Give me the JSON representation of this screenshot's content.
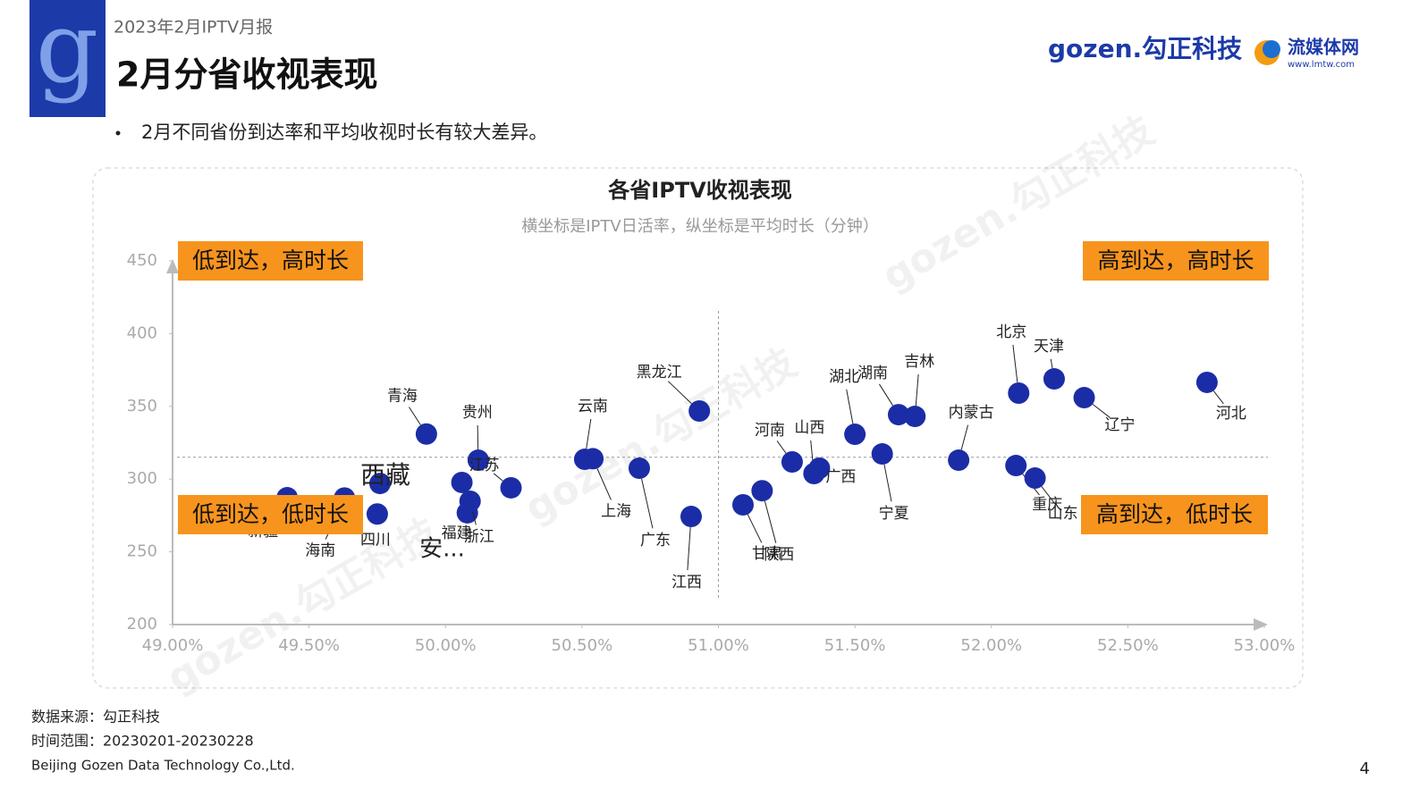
{
  "header": {
    "logo_letter": "g",
    "report": "2023年2月IPTV月报",
    "title": "2月分省收视表现",
    "bullet": "2月不同省份到达率和平均收视时长有较大差异。",
    "brand": "gozen.勾正科技",
    "partner": "流媒体网",
    "partner_url": "www.lmtw.com"
  },
  "watermark": "gozen.勾正科技",
  "chart_data": {
    "type": "scatter",
    "title": "各省IPTV收视表现",
    "subtitle": "横坐标是IPTV日活率，纵坐标是平均时长（分钟）",
    "color": "#1b2da6",
    "labels": [
      "新疆",
      "海南",
      "西藏",
      "四川",
      "青海",
      "贵州",
      "江苏",
      "安...",
      "福建",
      "浙江",
      "云南",
      "上海",
      "广东",
      "黑龙江",
      "江西",
      "甘肃",
      "陕西",
      "河南",
      "山西",
      "广西",
      "湖北",
      "宁夏",
      "湖南",
      "吉林",
      "内蒙古",
      "北京",
      "天津",
      "辽宁",
      "重庆",
      "山东",
      "河北"
    ],
    "x": [
      49.42,
      49.63,
      49.76,
      49.75,
      49.93,
      50.12,
      50.24,
      50.06,
      50.08,
      50.09,
      50.51,
      50.54,
      50.71,
      50.93,
      50.9,
      51.09,
      51.16,
      51.27,
      51.35,
      51.37,
      51.5,
      51.6,
      51.66,
      51.72,
      51.88,
      52.1,
      52.23,
      52.34,
      52.09,
      52.16,
      52.79
    ],
    "values": [
      287.2,
      287.0,
      297.0,
      276.0,
      331.0,
      313.0,
      294.0,
      297.7,
      276.8,
      284.8,
      313.6,
      314.0,
      307.5,
      346.8,
      274.3,
      282.3,
      292.0,
      311.8,
      303.8,
      307.5,
      330.8,
      317.3,
      344.3,
      343.1,
      313.0,
      359.1,
      368.9,
      356.0,
      309.3,
      300.7,
      366.5
    ],
    "xlim": [
      49,
      53
    ],
    "ylim": [
      200,
      450
    ],
    "xticks": [
      {
        "value": 49,
        "label": "49.00%"
      },
      {
        "value": 49.5,
        "label": "49.50%"
      },
      {
        "value": 50,
        "label": "50.00%"
      },
      {
        "value": 50.5,
        "label": "50.50%"
      },
      {
        "value": 51,
        "label": "51.00%"
      },
      {
        "value": 51.5,
        "label": "51.50%"
      },
      {
        "value": 52,
        "label": "52.00%"
      },
      {
        "value": 52.5,
        "label": "52.50%"
      },
      {
        "value": 53,
        "label": "53.00%"
      }
    ],
    "yticks": [
      200,
      250,
      300,
      350,
      400,
      450
    ],
    "ref_x": 51,
    "ref_y": 315,
    "quadrants": [
      "低到达，高时长",
      "高到达，高时长",
      "低到达，低时长",
      "高到达，低时长"
    ],
    "grid": false
  },
  "footer": {
    "source": "数据来源：勾正科技",
    "period": "时间范围：20230201-20230228",
    "company": "Beijing Gozen Data Technology Co.,Ltd.",
    "page": "4"
  }
}
